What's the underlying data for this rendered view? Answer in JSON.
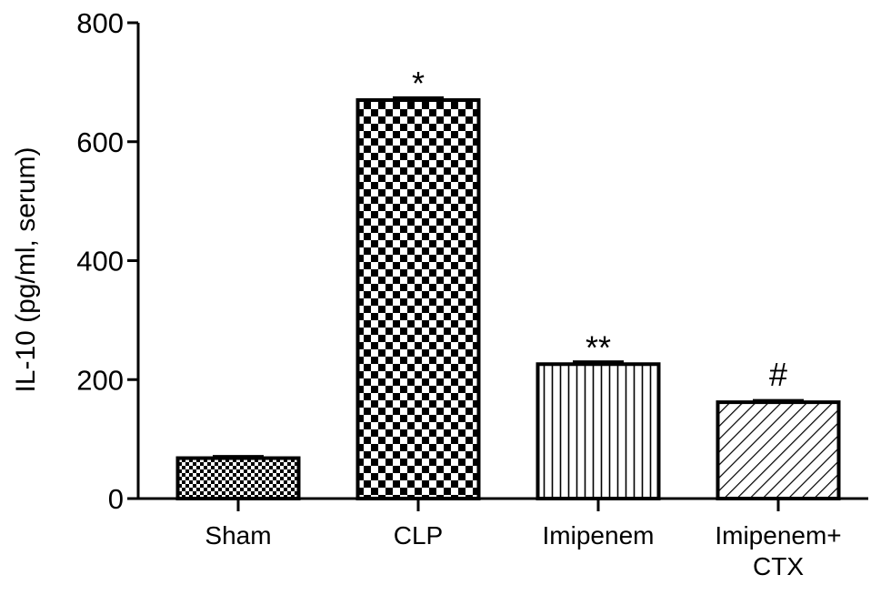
{
  "chart_data": {
    "type": "bar",
    "categories": [
      "Sham",
      "CLP",
      "Imipenem",
      "Imipenem+\nCTX"
    ],
    "values": [
      68,
      670,
      226,
      162
    ],
    "errors": [
      3,
      4,
      4,
      3
    ],
    "annotations": [
      "",
      "*",
      "**",
      "#"
    ],
    "patterns": [
      "fine-checker",
      "coarse-checker",
      "vertical-lines",
      "diagonal-lines"
    ],
    "xlabel": "",
    "ylabel": "IL-10 (pg/ml, serum)",
    "ylim": [
      0,
      800
    ],
    "yticks": [
      0,
      200,
      400,
      600,
      800
    ],
    "grid": false,
    "colors": {
      "ink": "#000000",
      "background": "#ffffff"
    }
  }
}
